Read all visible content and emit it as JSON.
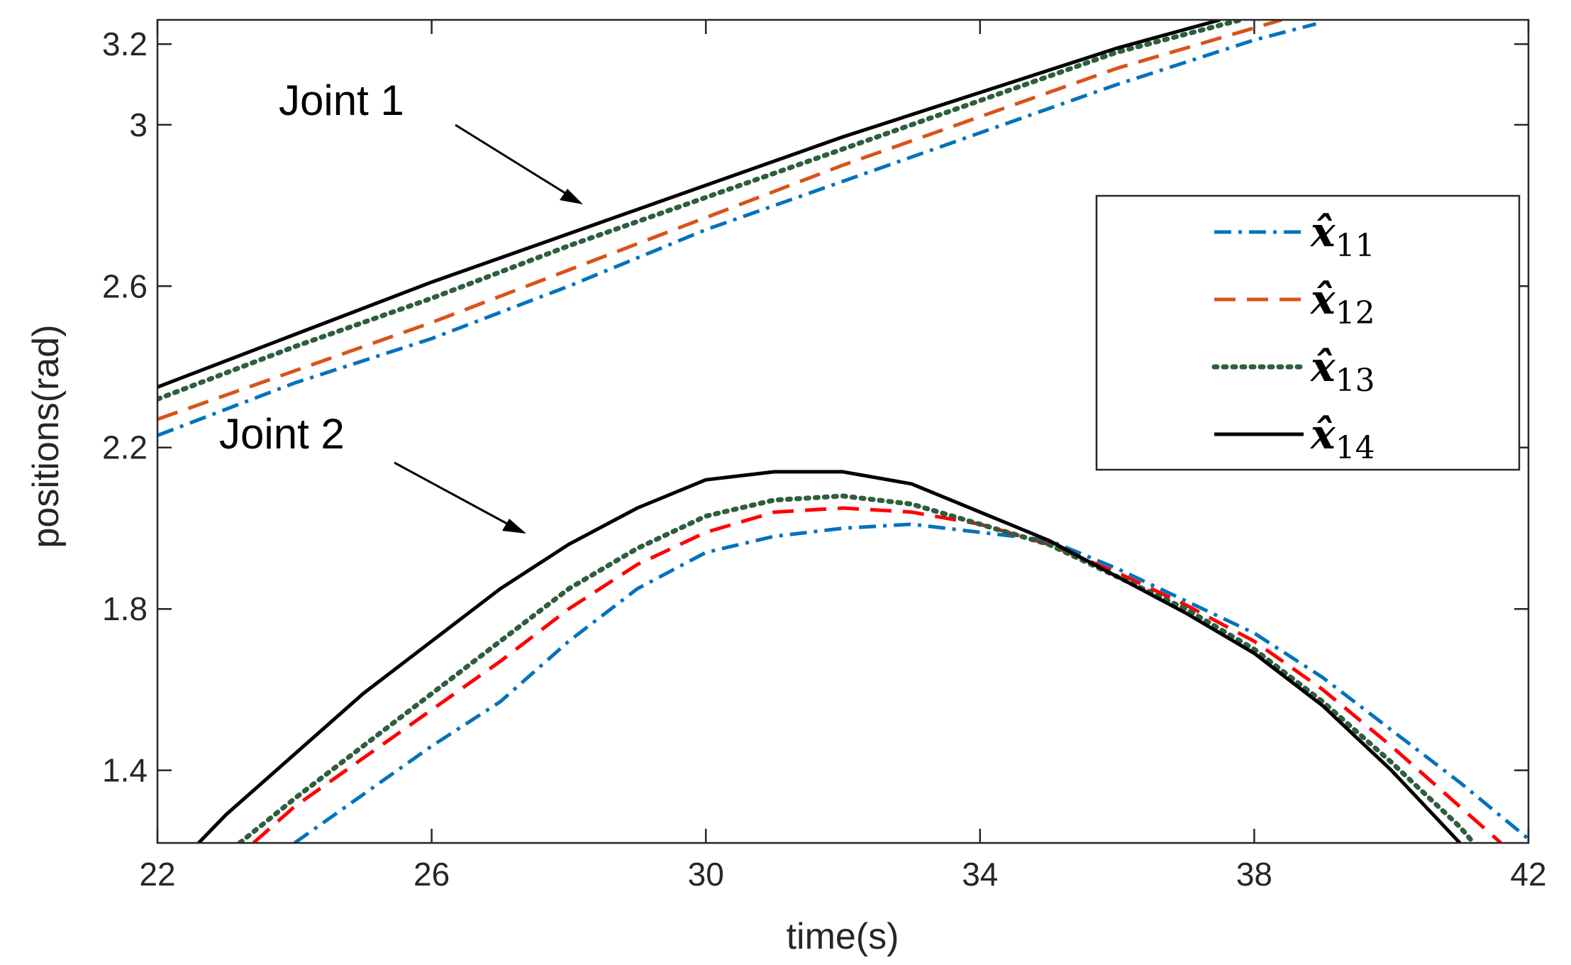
{
  "chart_data": {
    "type": "line",
    "title": "",
    "xlabel": "time(s)",
    "ylabel": "positions(rad)",
    "xlim": [
      22,
      42
    ],
    "ylim": [
      1.22,
      3.26
    ],
    "xticks": [
      22,
      26,
      30,
      34,
      38,
      42
    ],
    "yticks": [
      1.4,
      1.8,
      2.2,
      2.6,
      3,
      3.2
    ],
    "grid": false,
    "legend_position": "right",
    "annotations": [
      {
        "text": "Joint 1",
        "points_to": [
          28.2,
          2.8
        ]
      },
      {
        "text": "Joint 2",
        "points_to": [
          27.0,
          1.96
        ]
      }
    ],
    "series": [
      {
        "name": "x̂11",
        "base": "x̂",
        "sub": "11",
        "color": "#0072BD",
        "style": "dashdot",
        "joint": 1,
        "x": [
          22,
          24,
          26,
          28,
          30,
          32,
          34,
          36,
          38,
          38.9
        ],
        "y": [
          2.23,
          2.36,
          2.47,
          2.6,
          2.74,
          2.86,
          2.98,
          3.1,
          3.21,
          3.25
        ]
      },
      {
        "name": "x̂12",
        "base": "x̂",
        "sub": "12",
        "color": "#D95319",
        "style": "dashed",
        "joint": 1,
        "x": [
          22,
          24,
          26,
          28,
          30,
          32,
          34,
          36,
          38,
          38.4
        ],
        "y": [
          2.27,
          2.39,
          2.51,
          2.64,
          2.77,
          2.9,
          3.02,
          3.14,
          3.24,
          3.26
        ]
      },
      {
        "name": "x̂13",
        "base": "x̂",
        "sub": "13",
        "color": "#2E5E3E",
        "style": "dotted",
        "joint": 1,
        "x": [
          22,
          24,
          26,
          28,
          30,
          32,
          34,
          36,
          37.8
        ],
        "y": [
          2.32,
          2.45,
          2.57,
          2.7,
          2.82,
          2.94,
          3.06,
          3.18,
          3.26
        ]
      },
      {
        "name": "x̂14",
        "base": "x̂",
        "sub": "14",
        "color": "#000000",
        "style": "solid",
        "joint": 1,
        "x": [
          22,
          24,
          26,
          28,
          30,
          32,
          34,
          36,
          37.5
        ],
        "y": [
          2.35,
          2.48,
          2.61,
          2.73,
          2.85,
          2.97,
          3.08,
          3.19,
          3.26
        ]
      },
      {
        "name": "x̂11 (joint 2)",
        "color": "#0072BD",
        "style": "dashdot",
        "joint": 2,
        "x": [
          24.0,
          24.5,
          25,
          26,
          27,
          28,
          29,
          30,
          31,
          32,
          33,
          34,
          35,
          36,
          37,
          38,
          39,
          40,
          41,
          42
        ],
        "y": [
          1.22,
          1.28,
          1.34,
          1.46,
          1.57,
          1.72,
          1.85,
          1.94,
          1.98,
          2.0,
          2.01,
          1.99,
          1.97,
          1.9,
          1.82,
          1.74,
          1.63,
          1.5,
          1.37,
          1.23
        ]
      },
      {
        "name": "x̂12 (joint 2)",
        "color": "#FF0000",
        "style": "dashed",
        "joint": 2,
        "x": [
          23.4,
          24,
          25,
          26,
          27,
          28,
          29,
          30,
          31,
          32,
          33,
          34,
          35,
          36,
          37,
          38,
          39,
          40,
          41,
          41.6
        ],
        "y": [
          1.22,
          1.31,
          1.43,
          1.55,
          1.67,
          1.8,
          1.91,
          1.99,
          2.04,
          2.05,
          2.04,
          2.01,
          1.96,
          1.89,
          1.81,
          1.72,
          1.6,
          1.46,
          1.31,
          1.22
        ]
      },
      {
        "name": "x̂13 (joint 2)",
        "color": "#2E5E3E",
        "style": "dotted",
        "joint": 2,
        "x": [
          23.2,
          24,
          25,
          26,
          27,
          28,
          29,
          30,
          31,
          32,
          33,
          34,
          35,
          36,
          37,
          38,
          39,
          40,
          41,
          41.2
        ],
        "y": [
          1.22,
          1.33,
          1.46,
          1.59,
          1.72,
          1.85,
          1.95,
          2.03,
          2.07,
          2.08,
          2.06,
          2.01,
          1.96,
          1.88,
          1.8,
          1.7,
          1.57,
          1.42,
          1.26,
          1.22
        ]
      },
      {
        "name": "x̂14 (joint 2)",
        "color": "#000000",
        "style": "solid",
        "joint": 2,
        "x": [
          22.6,
          23,
          24,
          25,
          26,
          27,
          28,
          29,
          30,
          31,
          32,
          33,
          34,
          35,
          36,
          37,
          38,
          39,
          40,
          41
        ],
        "y": [
          1.22,
          1.29,
          1.44,
          1.59,
          1.72,
          1.85,
          1.96,
          2.05,
          2.12,
          2.14,
          2.14,
          2.11,
          2.04,
          1.97,
          1.88,
          1.79,
          1.69,
          1.56,
          1.4,
          1.22
        ]
      }
    ]
  }
}
